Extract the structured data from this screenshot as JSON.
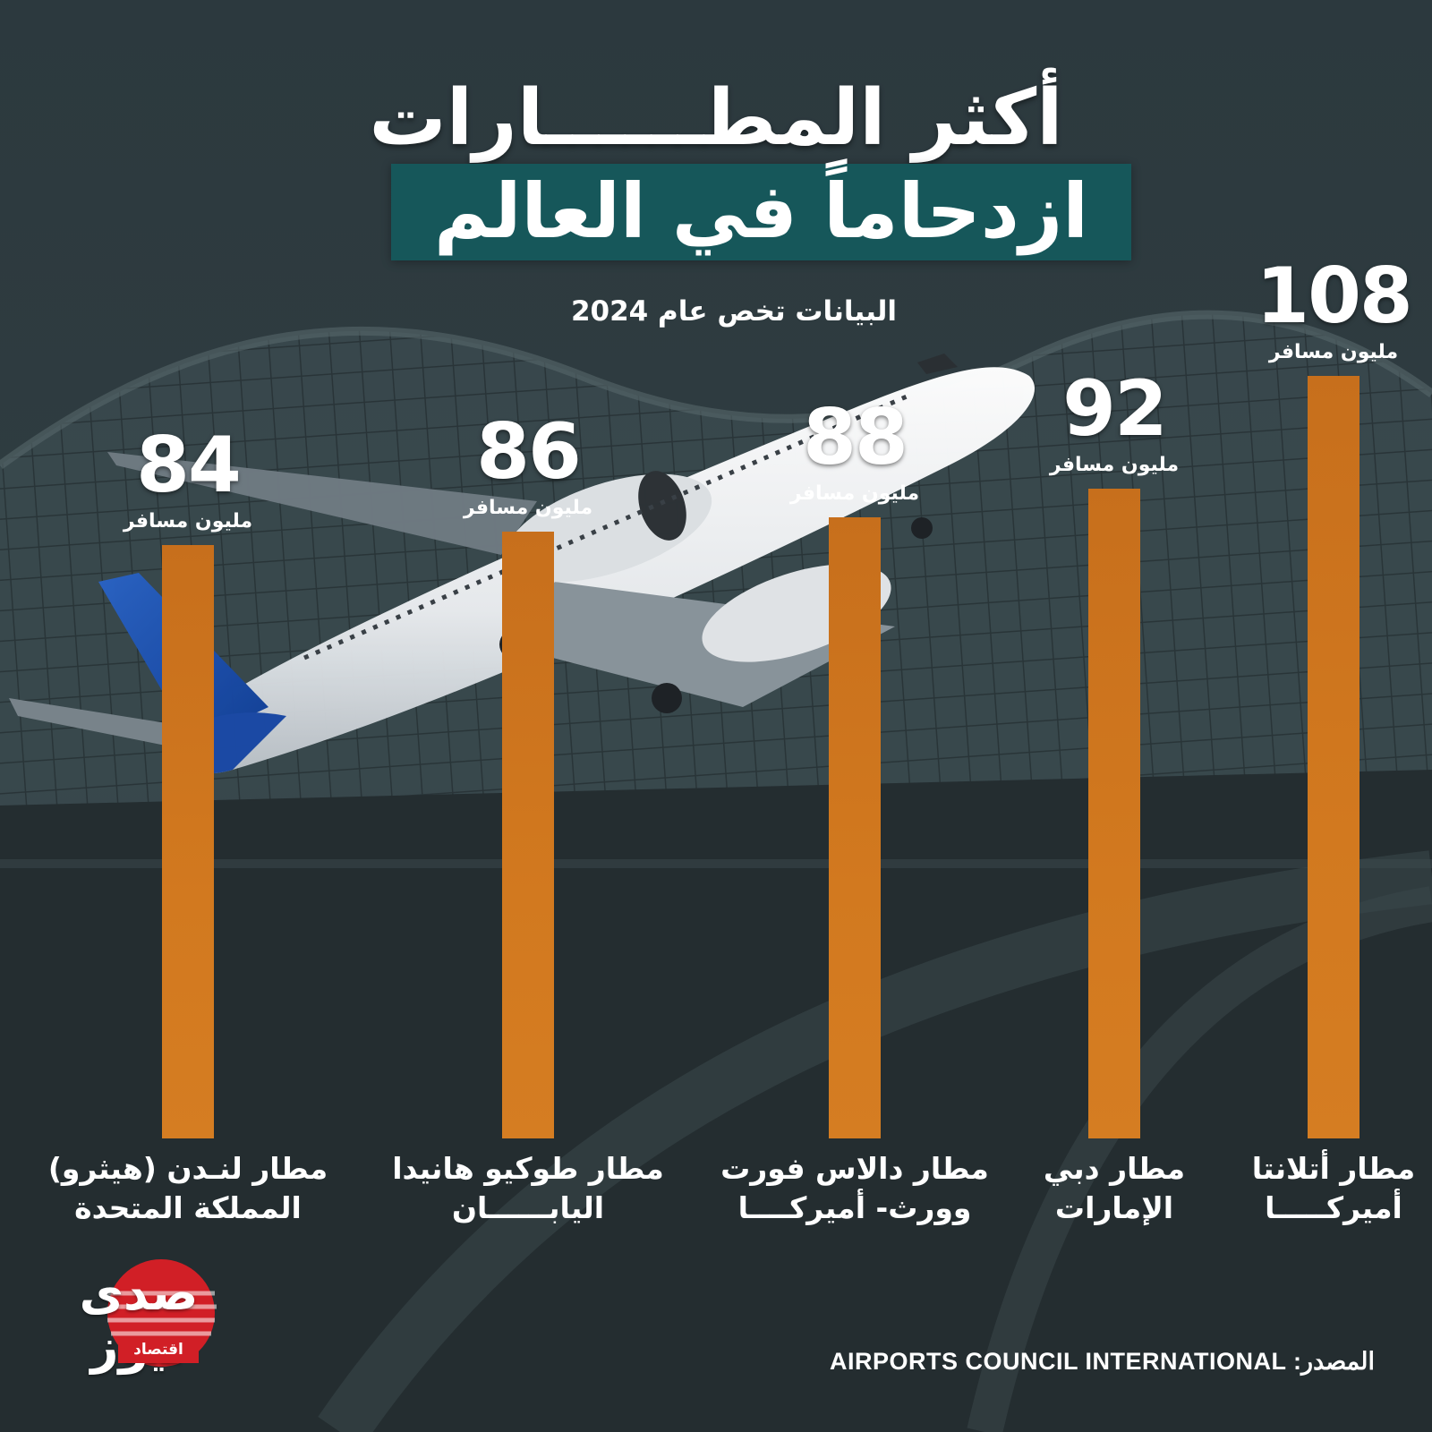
{
  "header": {
    "title_line1": "أكثر المطــــــارات",
    "title_line2": "ازدحاماً في العالم",
    "subtitle": "البيانات تخص عام 2024"
  },
  "colors": {
    "background": "#2a363b",
    "title_band": "#16575a",
    "bar": "#d2791f",
    "text": "#ffffff",
    "logo_accent": "#d11f26"
  },
  "footer": {
    "source": "المصدر: AIRPORTS COUNCIL INTERNATIONAL"
  },
  "logo": {
    "name": "صدى نيوز",
    "sub": "اقتصاد"
  },
  "chart_data": {
    "type": "bar",
    "title": "أكثر المطــــــارات ازدحاماً في العالم",
    "subtitle": "البيانات تخص عام 2024",
    "unit": "مليون مسافر",
    "ylim": [
      0,
      108
    ],
    "grid": false,
    "categories": [
      "مطار لنـدن (هيثرو) المملكة المتحدة",
      "مطار طوكيو هانيدا اليابــــــان",
      "مطار دالاس فورت وورث- أميركــــا",
      "مطار دبي الإمارات",
      "مطار أتلانتا أميركـــــا"
    ],
    "bars": [
      {
        "label_line1": "مطار لنـدن (هيثرو)",
        "label_line2": "المملكة المتحدة",
        "value": 84,
        "value_text": "84",
        "unit": "مليون مسافر"
      },
      {
        "label_line1": "مطار طوكيو هانيدا",
        "label_line2": "اليابــــــان",
        "value": 86,
        "value_text": "86",
        "unit": "مليون مسافر"
      },
      {
        "label_line1": "مطار دالاس فورت",
        "label_line2": "وورث- أميركــــا",
        "value": 88,
        "value_text": "88",
        "unit": "مليون مسافر"
      },
      {
        "label_line1": "مطار دبي",
        "label_line2": "الإمارات",
        "value": 92,
        "value_text": "92",
        "unit": "مليون مسافر"
      },
      {
        "label_line1": "مطار أتلانتا",
        "label_line2": "أميركـــــا",
        "value": 108,
        "value_text": "108",
        "unit": "مليون مسافر"
      }
    ]
  }
}
